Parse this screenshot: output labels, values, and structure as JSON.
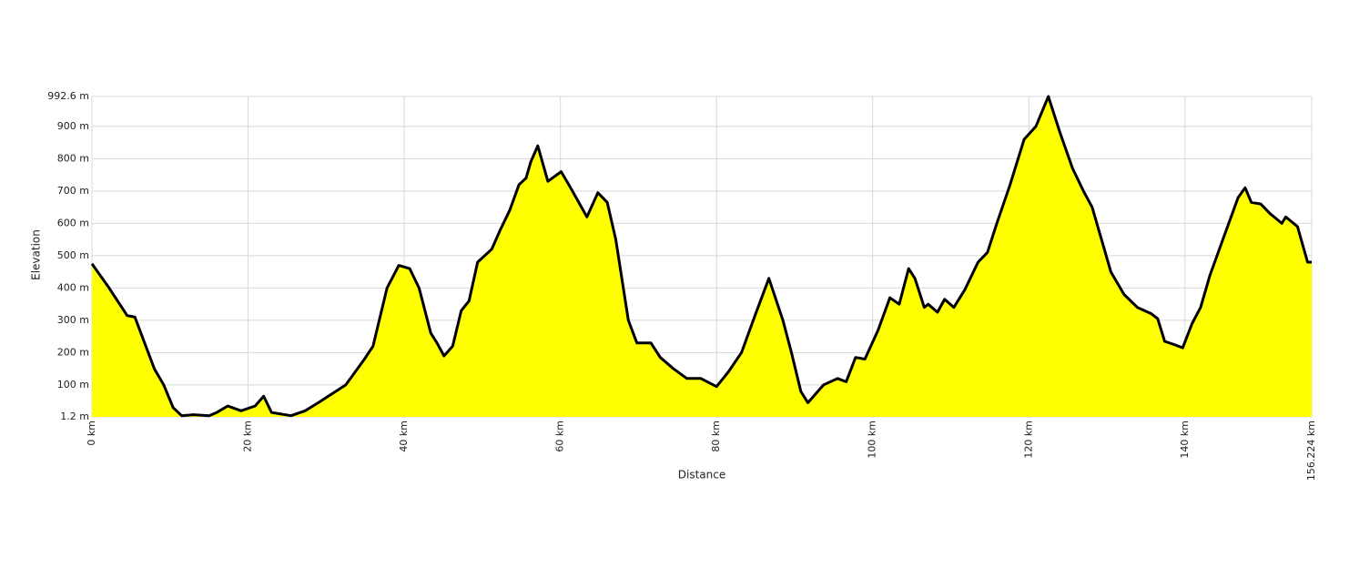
{
  "chart_data": {
    "type": "area",
    "xlabel": "Distance",
    "ylabel": "Elevation",
    "x": [
      0,
      2.2,
      4.5,
      5.5,
      6.9,
      8,
      9.2,
      10.4,
      11.5,
      13,
      15,
      16,
      17.4,
      19.1,
      20.9,
      22,
      23,
      25.5,
      27.3,
      29,
      32.5,
      34.9,
      36,
      37.8,
      39.3,
      40.7,
      41.9,
      43.4,
      44.2,
      45.1,
      46.2,
      47.3,
      48.3,
      49.4,
      51.2,
      52.3,
      53.5,
      54.7,
      55.6,
      56.2,
      57.1,
      58.4,
      60.1,
      61.2,
      63.4,
      64.8,
      66,
      67.1,
      68.7,
      69.8,
      71.6,
      72.8,
      74.5,
      76.2,
      78,
      80,
      81.5,
      83.2,
      85,
      86.7,
      88.5,
      89.6,
      90.8,
      91.7,
      93.7,
      95.5,
      96.6,
      97.8,
      99,
      100.7,
      102.2,
      103.4,
      104.6,
      105.4,
      106.6,
      107.1,
      108.3,
      109.2,
      110.4,
      111.8,
      113.5,
      114.7,
      115.9,
      117.6,
      119.4,
      120.9,
      122.5,
      124,
      125.6,
      127,
      128.1,
      129.3,
      130.5,
      132.2,
      133.9,
      135.7,
      136.5,
      137.4,
      138.6,
      139.7,
      140.9,
      142,
      143.2,
      145,
      146.8,
      147.7,
      148.5,
      149.7,
      150.9,
      152.4,
      152.9,
      154.4,
      155.7,
      156.224
    ],
    "values": [
      475,
      400,
      315,
      310,
      220,
      150,
      100,
      30,
      5,
      8,
      5,
      15,
      35,
      20,
      35,
      65,
      15,
      5,
      20,
      45,
      100,
      180,
      220,
      400,
      470,
      460,
      400,
      260,
      230,
      190,
      220,
      330,
      360,
      480,
      520,
      580,
      640,
      720,
      740,
      790,
      840,
      730,
      760,
      715,
      620,
      695,
      665,
      550,
      300,
      230,
      230,
      185,
      150,
      120,
      120,
      95,
      140,
      200,
      320,
      430,
      300,
      200,
      80,
      45,
      100,
      120,
      110,
      185,
      180,
      270,
      370,
      350,
      460,
      430,
      340,
      350,
      325,
      365,
      340,
      395,
      480,
      510,
      600,
      720,
      860,
      900,
      992.6,
      880,
      770,
      700,
      650,
      550,
      450,
      380,
      340,
      320,
      305,
      235,
      225,
      215,
      290,
      340,
      440,
      560,
      680,
      710,
      665,
      660,
      630,
      600,
      620,
      590,
      480,
      480
    ],
    "fill_color": "#ffff00",
    "line_color": "#000000",
    "grid": true,
    "xlim": [
      0,
      156.224
    ],
    "ylim": [
      1.2,
      992.6
    ],
    "xticks": [
      {
        "value": 0,
        "label": "0 km"
      },
      {
        "value": 20,
        "label": "20 km"
      },
      {
        "value": 40,
        "label": "40 km"
      },
      {
        "value": 60,
        "label": "60 km"
      },
      {
        "value": 80,
        "label": "80 km"
      },
      {
        "value": 100,
        "label": "100 km"
      },
      {
        "value": 120,
        "label": "120 km"
      },
      {
        "value": 140,
        "label": "140 km"
      },
      {
        "value": 156.224,
        "label": "156.224 km"
      }
    ],
    "yticks": [
      {
        "value": 1.2,
        "label": "1.2 m"
      },
      {
        "value": 100,
        "label": "100 m"
      },
      {
        "value": 200,
        "label": "200 m"
      },
      {
        "value": 300,
        "label": "300 m"
      },
      {
        "value": 400,
        "label": "400 m"
      },
      {
        "value": 500,
        "label": "500 m"
      },
      {
        "value": 600,
        "label": "600 m"
      },
      {
        "value": 700,
        "label": "700 m"
      },
      {
        "value": 800,
        "label": "800 m"
      },
      {
        "value": 900,
        "label": "900 m"
      },
      {
        "value": 992.6,
        "label": "992.6 m"
      }
    ]
  }
}
